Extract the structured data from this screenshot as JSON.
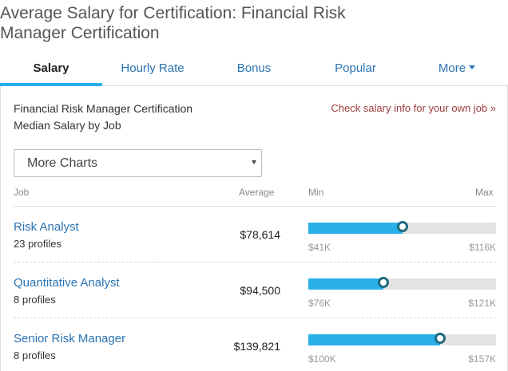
{
  "page": {
    "title": "Average Salary for Certification: Financial Risk Manager Certification"
  },
  "tabs": [
    {
      "label": "Salary",
      "active": true
    },
    {
      "label": "Hourly Rate",
      "active": false
    },
    {
      "label": "Bonus",
      "active": false
    },
    {
      "label": "Popular",
      "active": false
    },
    {
      "label": "More",
      "active": false,
      "dropdown": true
    }
  ],
  "panel": {
    "subtitle_line1": "Financial Risk Manager Certification",
    "subtitle_line2": "Median Salary by Job",
    "own_job_link": "Check salary info for your own job »",
    "more_charts_select": "More Charts"
  },
  "table": {
    "columns": {
      "job": "Job",
      "average": "Average",
      "min": "Min",
      "max": "Max"
    },
    "rows": [
      {
        "job": "Risk Analyst",
        "profiles": "23 profiles",
        "average": "$78,614",
        "min": "$41K",
        "max": "$116K",
        "median_fraction": 0.5
      },
      {
        "job": "Quantitative Analyst",
        "profiles": "8 profiles",
        "average": "$94,500",
        "min": "$76K",
        "max": "$121K",
        "median_fraction": 0.4
      },
      {
        "job": "Senior Risk Manager",
        "profiles": "8 profiles",
        "average": "$139,821",
        "min": "$100K",
        "max": "$157K",
        "median_fraction": 0.7
      }
    ]
  },
  "colors": {
    "accent": "#29b0e8",
    "link": "#2a73b3",
    "own_link": "#9b3b3b",
    "bar_track": "#e3e3e3",
    "dot_border": "#1f6a80"
  },
  "icons": {
    "more_caret": "chevron-down-icon",
    "select_arrow": "caret-down-icon"
  }
}
